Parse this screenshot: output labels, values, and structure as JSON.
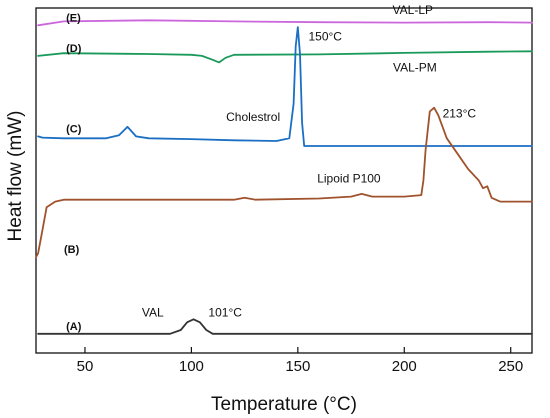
{
  "chart_data": {
    "type": "line",
    "xlabel": "Temperature (°C)",
    "ylabel": "Heat flow (mW)",
    "xlim": [
      27,
      260
    ],
    "x_ticks": [
      50,
      100,
      150,
      200,
      250
    ],
    "y_ticks_shown": false,
    "grid": false,
    "series": [
      {
        "id": "E",
        "letter": "(E)",
        "name": "VAL-LP",
        "color": "#cc66dd",
        "x": [
          28,
          40,
          80,
          120,
          160,
          200,
          240,
          260
        ],
        "y": [
          45.5,
          46.5,
          46.8,
          46.5,
          46.3,
          46.2,
          46.3,
          46.2
        ]
      },
      {
        "id": "D",
        "letter": "(D)",
        "name": "VAL-PM",
        "color": "#1a9a5a",
        "x": [
          28,
          40,
          80,
          100,
          105,
          110,
          113,
          116,
          120,
          160,
          200,
          240,
          260
        ],
        "y": [
          37.5,
          38.2,
          38.0,
          37.8,
          37.5,
          36.5,
          35.8,
          37.0,
          37.8,
          37.9,
          38.3,
          38.6,
          38.7
        ]
      },
      {
        "id": "C",
        "letter": "(C)",
        "name": "Cholestrol",
        "color": "#1a6fc4",
        "x": [
          28,
          30,
          40,
          60,
          66,
          70,
          74,
          80,
          100,
          120,
          140,
          146,
          148,
          149,
          150,
          151,
          152,
          153,
          160,
          200,
          260
        ],
        "y": [
          16.5,
          16.2,
          16.0,
          16.0,
          16.8,
          19.0,
          16.5,
          16.0,
          15.8,
          15.5,
          15.3,
          16.0,
          25.0,
          40.0,
          45.0,
          38.0,
          20.0,
          14.0,
          14.0,
          14.0,
          14.0
        ]
      },
      {
        "id": "B",
        "letter": "(B)",
        "name": "Lipoid P100",
        "color": "#a0522d",
        "x": [
          27,
          28,
          30,
          32,
          36,
          40,
          50,
          100,
          120,
          125,
          130,
          160,
          175,
          180,
          185,
          200,
          208,
          209,
          210,
          212,
          214,
          216,
          220,
          225,
          230,
          235,
          237,
          239,
          241,
          245,
          260
        ],
        "y": [
          -15.0,
          -14.0,
          -8.0,
          -2.0,
          -0.5,
          0.0,
          0.0,
          0.0,
          0.0,
          0.5,
          0.0,
          0.3,
          0.8,
          1.5,
          0.8,
          0.8,
          1.2,
          5.0,
          13.0,
          23.0,
          24.0,
          22.0,
          16.0,
          12.0,
          8.0,
          5.0,
          3.0,
          3.5,
          0.5,
          -0.5,
          -0.5
        ]
      },
      {
        "id": "A",
        "letter": "(A)",
        "name": "VAL",
        "color": "#333333",
        "x": [
          28,
          60,
          90,
          95,
          98,
          101,
          104,
          107,
          110,
          130,
          200,
          260
        ],
        "y": [
          -35.0,
          -35.0,
          -35.0,
          -34.0,
          -32.0,
          -31.2,
          -32.0,
          -34.0,
          -35.0,
          -35.0,
          -35.0,
          -35.0
        ]
      }
    ],
    "annotations": [
      {
        "text": "VAL",
        "x": 87,
        "y": -30.5,
        "anchor": "end"
      },
      {
        "text": "101°C",
        "x": 108,
        "y": -30.5,
        "anchor": "start"
      },
      {
        "text": "Lipoid P100",
        "x": 174,
        "y": 4.5,
        "anchor": "middle"
      },
      {
        "text": "213°C",
        "x": 218,
        "y": 21.5,
        "anchor": "start"
      },
      {
        "text": "Cholestrol",
        "x": 129,
        "y": 20.5,
        "anchor": "middle"
      },
      {
        "text": "150°C",
        "x": 155,
        "y": 41.5,
        "anchor": "start"
      },
      {
        "text": "VAL-PM",
        "x": 205,
        "y": 33.5,
        "anchor": "middle"
      },
      {
        "text": "VAL-LP",
        "x": 204,
        "y": 48.5,
        "anchor": "middle"
      }
    ]
  }
}
